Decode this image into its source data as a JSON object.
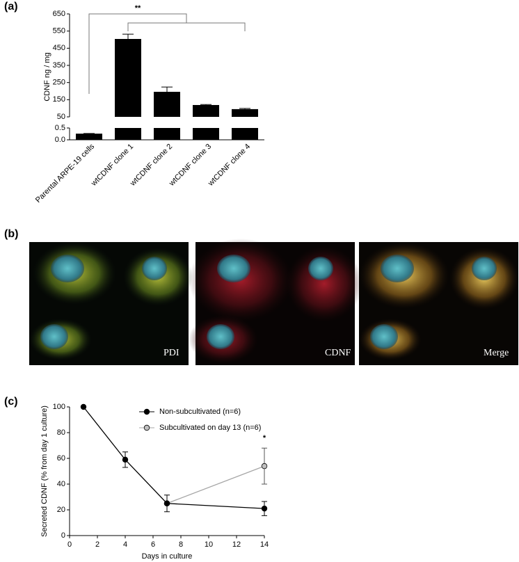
{
  "panel_labels": [
    "(a)",
    "(b)",
    "(c)"
  ],
  "micrographs": [
    {
      "label": "PDI"
    },
    {
      "label": "CDNF"
    },
    {
      "label": "Merge"
    }
  ],
  "chart_data": [
    {
      "type": "bar",
      "y_label": "CDNF ng / mg",
      "categories": [
        "Parental ARPE-19 cells",
        "wtCDNF clone 1",
        "wtCDNF clone 2",
        "wtCDNF clone 3",
        "wtCDNF clone 4"
      ],
      "values": [
        0.26,
        504,
        196,
        119,
        95
      ],
      "errors": [
        0.01,
        28,
        28,
        3,
        4
      ],
      "color": "#000000",
      "y_segments": [
        {
          "ylim": [
            0,
            0.5
          ],
          "yticks": [
            {
              "value": 0,
              "label": "0.0"
            },
            0.5
          ]
        },
        {
          "ylim": [
            50,
            650
          ],
          "yticks": [
            50,
            150,
            250,
            350,
            450,
            550,
            650
          ]
        }
      ],
      "annotations": [
        {
          "text": "**"
        }
      ]
    },
    {
      "type": "line",
      "x_label": "Days in culture",
      "y_label": "Secreted CDNF (% from day 1 culture)",
      "xlim": [
        0,
        14
      ],
      "xticks": [
        0,
        2,
        4,
        6,
        8,
        10,
        12,
        14
      ],
      "ylim": [
        0,
        100
      ],
      "yticks": [
        0,
        20,
        40,
        60,
        80,
        100
      ],
      "series": [
        {
          "name": "Non-subcultivated (n=6)",
          "color": "#000000",
          "marker_color": "#000000",
          "x": [
            1,
            4,
            7,
            14
          ],
          "values": [
            100,
            59,
            25,
            21
          ],
          "errors": [
            null,
            6,
            6.5,
            5.5
          ]
        },
        {
          "name": "Subcultivated on day 13 (n=6)",
          "color": "#a6a6a6",
          "marker_color": "#bfbfbf",
          "x": [
            7,
            14
          ],
          "values": [
            25,
            54
          ],
          "errors": [
            null,
            14
          ]
        }
      ],
      "annotations": [
        {
          "text": "*"
        }
      ]
    }
  ]
}
